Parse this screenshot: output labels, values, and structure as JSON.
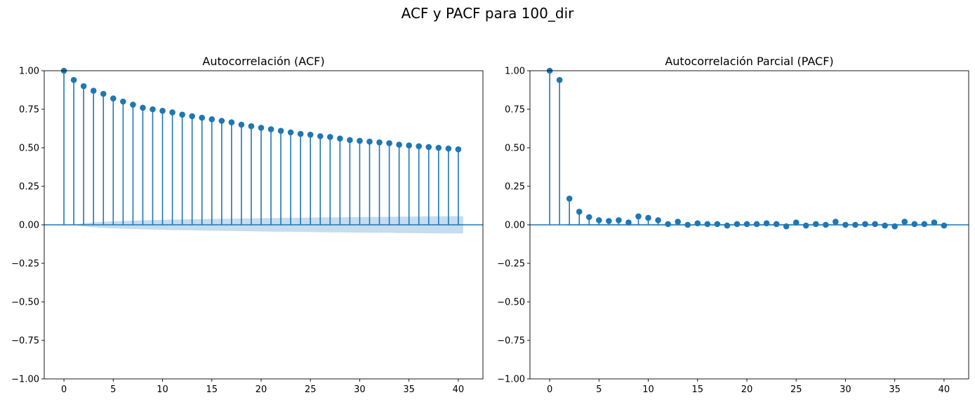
{
  "figure": {
    "title": "ACF y PACF para 100_dir"
  },
  "style": {
    "marker_color": "#1f77b4",
    "band_color": "#c6dcef",
    "baseline_color": "#1f77b4"
  },
  "chart_data": [
    {
      "type": "stem",
      "title": "Autocorrelación (ACF)",
      "xlabel": "",
      "ylabel": "",
      "xlim": [
        -2,
        42.5
      ],
      "ylim": [
        -1.0,
        1.0
      ],
      "xticks": [
        "0",
        "5",
        "10",
        "15",
        "20",
        "25",
        "30",
        "35",
        "40"
      ],
      "yticks": [
        "1.00",
        "0.75",
        "0.50",
        "0.25",
        "0.00",
        "−0.25",
        "−0.50",
        "−0.75",
        "−1.00"
      ],
      "lags": [
        0,
        1,
        2,
        3,
        4,
        5,
        6,
        7,
        8,
        9,
        10,
        11,
        12,
        13,
        14,
        15,
        16,
        17,
        18,
        19,
        20,
        21,
        22,
        23,
        24,
        25,
        26,
        27,
        28,
        29,
        30,
        31,
        32,
        33,
        34,
        35,
        36,
        37,
        38,
        39,
        40
      ],
      "values": [
        1.0,
        0.94,
        0.9,
        0.87,
        0.85,
        0.82,
        0.8,
        0.78,
        0.76,
        0.75,
        0.74,
        0.73,
        0.715,
        0.705,
        0.695,
        0.685,
        0.675,
        0.665,
        0.65,
        0.64,
        0.63,
        0.62,
        0.61,
        0.6,
        0.59,
        0.585,
        0.575,
        0.57,
        0.56,
        0.55,
        0.545,
        0.54,
        0.535,
        0.53,
        0.52,
        0.515,
        0.51,
        0.505,
        0.5,
        0.495,
        0.49
      ],
      "confidence_band": [
        0.0,
        0.0,
        0.011,
        0.016,
        0.02,
        0.023,
        0.025,
        0.027,
        0.029,
        0.031,
        0.032,
        0.034,
        0.035,
        0.036,
        0.037,
        0.038,
        0.039,
        0.04,
        0.041,
        0.042,
        0.043,
        0.044,
        0.045,
        0.045,
        0.046,
        0.047,
        0.048,
        0.048,
        0.049,
        0.05,
        0.05,
        0.051,
        0.052,
        0.052,
        0.053,
        0.053,
        0.054,
        0.055,
        0.055,
        0.056,
        0.056
      ]
    },
    {
      "type": "stem",
      "title": "Autocorrelación Parcial (PACF)",
      "xlabel": "",
      "ylabel": "",
      "xlim": [
        -2,
        42.5
      ],
      "ylim": [
        -1.0,
        1.0
      ],
      "xticks": [
        "0",
        "5",
        "10",
        "15",
        "20",
        "25",
        "30",
        "35",
        "40"
      ],
      "yticks": [
        "1.00",
        "0.75",
        "0.50",
        "0.25",
        "0.00",
        "−0.25",
        "−0.50",
        "−0.75",
        "−1.00"
      ],
      "lags": [
        0,
        1,
        2,
        3,
        4,
        5,
        6,
        7,
        8,
        9,
        10,
        11,
        12,
        13,
        14,
        15,
        16,
        17,
        18,
        19,
        20,
        21,
        22,
        23,
        24,
        25,
        26,
        27,
        28,
        29,
        30,
        31,
        32,
        33,
        34,
        35,
        36,
        37,
        38,
        39,
        40
      ],
      "values": [
        1.0,
        0.94,
        0.17,
        0.085,
        0.05,
        0.03,
        0.025,
        0.03,
        0.015,
        0.055,
        0.045,
        0.03,
        0.005,
        0.02,
        0.0,
        0.01,
        0.005,
        0.005,
        -0.005,
        0.005,
        0.005,
        0.005,
        0.01,
        0.005,
        -0.01,
        0.015,
        -0.005,
        0.005,
        0.0,
        0.02,
        0.0,
        0.0,
        0.005,
        0.005,
        -0.005,
        -0.01,
        0.02,
        0.005,
        0.005,
        0.015,
        -0.005
      ],
      "confidence_band": [
        0.0,
        0.0,
        0.006,
        0.006,
        0.006,
        0.006,
        0.006,
        0.006,
        0.006,
        0.006,
        0.006,
        0.006,
        0.006,
        0.006,
        0.006,
        0.006,
        0.006,
        0.006,
        0.006,
        0.006,
        0.006,
        0.006,
        0.006,
        0.006,
        0.006,
        0.006,
        0.006,
        0.006,
        0.006,
        0.006,
        0.006,
        0.006,
        0.006,
        0.006,
        0.006,
        0.006,
        0.006,
        0.006,
        0.006,
        0.006,
        0.006
      ]
    }
  ]
}
